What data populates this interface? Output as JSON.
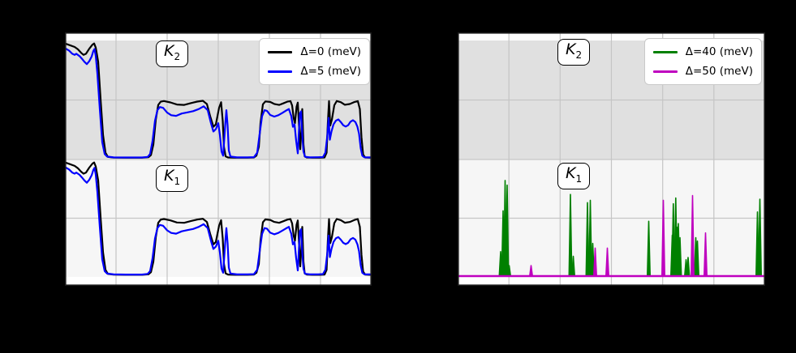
{
  "figure": {
    "background": "#000000",
    "axes_background": "#ffffff",
    "grid_color": "#c5c5c5",
    "frame_color": "#1b1b1b"
  },
  "panels": [
    {
      "id": "left",
      "klabels": [
        {
          "base": "K",
          "sub": "2"
        },
        {
          "base": "K",
          "sub": "1"
        }
      ]
    },
    {
      "id": "right",
      "klabels": [
        {
          "base": "K",
          "sub": "2"
        },
        {
          "base": "K",
          "sub": "1"
        }
      ]
    }
  ],
  "chart_data": [
    {
      "panel": "left",
      "type": "line",
      "legend_position": "upper right",
      "grid": true,
      "x_tick_labels_visible": false,
      "y_tick_labels_visible": false,
      "bands": [
        {
          "label": "K2",
          "fill": "#e0e0e0"
        },
        {
          "label": "K1",
          "fill": "#f6f6f6"
        }
      ],
      "x_units": "px across panel (0-378)",
      "y_units": "fraction of band height above band baseline",
      "note_layout": "same curves drawn in upper K2 band and lower K1 band",
      "series": [
        {
          "name": "Δ=0 (meV)",
          "color": "#000000",
          "width": 2.2,
          "points": [
            [
              0,
              0.975
            ],
            [
              6,
              0.96
            ],
            [
              12,
              0.945
            ],
            [
              16,
              0.925
            ],
            [
              20,
              0.895
            ],
            [
              23,
              0.878
            ],
            [
              26,
              0.888
            ],
            [
              30,
              0.93
            ],
            [
              34,
              0.965
            ],
            [
              36,
              0.975
            ],
            [
              38,
              0.94
            ],
            [
              41,
              0.82
            ],
            [
              44,
              0.5
            ],
            [
              47,
              0.2
            ],
            [
              50,
              0.05
            ],
            [
              53,
              0.015
            ],
            [
              60,
              0.009
            ],
            [
              75,
              0.008
            ],
            [
              95,
              0.008
            ],
            [
              103,
              0.012
            ],
            [
              106,
              0.03
            ],
            [
              109,
              0.12
            ],
            [
              112,
              0.33
            ],
            [
              115,
              0.455
            ],
            [
              118,
              0.482
            ],
            [
              122,
              0.488
            ],
            [
              130,
              0.476
            ],
            [
              138,
              0.458
            ],
            [
              147,
              0.455
            ],
            [
              155,
              0.47
            ],
            [
              163,
              0.483
            ],
            [
              170,
              0.49
            ],
            [
              175,
              0.462
            ],
            [
              179,
              0.36
            ],
            [
              183,
              0.27
            ],
            [
              186,
              0.29
            ],
            [
              190,
              0.43
            ],
            [
              192.5,
              0.478
            ],
            [
              194.5,
              0.32
            ],
            [
              196,
              0.1
            ],
            [
              198,
              0.02
            ],
            [
              201,
              0.01
            ],
            [
              210,
              0.008
            ],
            [
              225,
              0.008
            ],
            [
              233,
              0.01
            ],
            [
              236,
              0.025
            ],
            [
              239,
              0.1
            ],
            [
              241,
              0.3
            ],
            [
              244,
              0.46
            ],
            [
              247,
              0.484
            ],
            [
              253,
              0.48
            ],
            [
              258,
              0.463
            ],
            [
              264,
              0.455
            ],
            [
              269,
              0.468
            ],
            [
              274,
              0.482
            ],
            [
              278,
              0.487
            ],
            [
              280,
              0.45
            ],
            [
              282,
              0.34
            ],
            [
              283.5,
              0.3
            ],
            [
              285.5,
              0.44
            ],
            [
              287,
              0.475
            ],
            [
              288.5,
              0.28
            ],
            [
              290,
              0.08
            ],
            [
              291.5,
              0.25
            ],
            [
              292.5,
              0.42
            ],
            [
              294,
              0.12
            ],
            [
              295.5,
              0.02
            ],
            [
              298,
              0.01
            ],
            [
              305,
              0.008
            ],
            [
              314,
              0.008
            ],
            [
              320,
              0.01
            ],
            [
              322.5,
              0.05
            ],
            [
              324,
              0.3
            ],
            [
              325.5,
              0.487
            ],
            [
              327,
              0.28
            ],
            [
              329,
              0.33
            ],
            [
              332,
              0.452
            ],
            [
              335,
              0.488
            ],
            [
              340,
              0.478
            ],
            [
              345,
              0.456
            ],
            [
              351,
              0.462
            ],
            [
              357,
              0.48
            ],
            [
              361,
              0.487
            ],
            [
              363.5,
              0.42
            ],
            [
              365.5,
              0.18
            ],
            [
              367.5,
              0.035
            ],
            [
              370,
              0.01
            ],
            [
              375,
              0.008
            ],
            [
              378,
              0.008
            ]
          ]
        },
        {
          "name": "Δ=5 (meV)",
          "color": "#0000ff",
          "width": 2.2,
          "points": [
            [
              0,
              0.935
            ],
            [
              5,
              0.915
            ],
            [
              9,
              0.888
            ],
            [
              12,
              0.878
            ],
            [
              14,
              0.888
            ],
            [
              18,
              0.868
            ],
            [
              21,
              0.845
            ],
            [
              24,
              0.82
            ],
            [
              27,
              0.8
            ],
            [
              30,
              0.825
            ],
            [
              33,
              0.865
            ],
            [
              35,
              0.91
            ],
            [
              36.5,
              0.928
            ],
            [
              38,
              0.87
            ],
            [
              40,
              0.72
            ],
            [
              43,
              0.42
            ],
            [
              46,
              0.14
            ],
            [
              49,
              0.04
            ],
            [
              52,
              0.018
            ],
            [
              60,
              0.011
            ],
            [
              75,
              0.01
            ],
            [
              95,
              0.01
            ],
            [
              102,
              0.015
            ],
            [
              105,
              0.04
            ],
            [
              108,
              0.15
            ],
            [
              111,
              0.32
            ],
            [
              114,
              0.41
            ],
            [
              117,
              0.437
            ],
            [
              121,
              0.43
            ],
            [
              126,
              0.39
            ],
            [
              131,
              0.368
            ],
            [
              137,
              0.362
            ],
            [
              144,
              0.382
            ],
            [
              151,
              0.392
            ],
            [
              158,
              0.402
            ],
            [
              165,
              0.42
            ],
            [
              171,
              0.443
            ],
            [
              176,
              0.41
            ],
            [
              180,
              0.3
            ],
            [
              183,
              0.23
            ],
            [
              186,
              0.25
            ],
            [
              189,
              0.3
            ],
            [
              191,
              0.2
            ],
            [
              193,
              0.06
            ],
            [
              195,
              0.025
            ],
            [
              197.5,
              0.28
            ],
            [
              199,
              0.41
            ],
            [
              200.5,
              0.28
            ],
            [
              202,
              0.07
            ],
            [
              204,
              0.018
            ],
            [
              212,
              0.011
            ],
            [
              225,
              0.011
            ],
            [
              233,
              0.013
            ],
            [
              237,
              0.05
            ],
            [
              240,
              0.21
            ],
            [
              243,
              0.36
            ],
            [
              246,
              0.41
            ],
            [
              249,
              0.405
            ],
            [
              253,
              0.37
            ],
            [
              258,
              0.356
            ],
            [
              263,
              0.368
            ],
            [
              268,
              0.388
            ],
            [
              272,
              0.405
            ],
            [
              276,
              0.42
            ],
            [
              279,
              0.36
            ],
            [
              281,
              0.27
            ],
            [
              283,
              0.29
            ],
            [
              285,
              0.15
            ],
            [
              287,
              0.045
            ],
            [
              289.5,
              0.38
            ],
            [
              291,
              0.4
            ],
            [
              292.5,
              0.2
            ],
            [
              294,
              0.06
            ],
            [
              296,
              0.016
            ],
            [
              302,
              0.011
            ],
            [
              312,
              0.012
            ],
            [
              318,
              0.014
            ],
            [
              321,
              0.05
            ],
            [
              323.5,
              0.2
            ],
            [
              325,
              0.345
            ],
            [
              326.5,
              0.16
            ],
            [
              328.5,
              0.23
            ],
            [
              331,
              0.29
            ],
            [
              334,
              0.322
            ],
            [
              337,
              0.332
            ],
            [
              340,
              0.31
            ],
            [
              343,
              0.283
            ],
            [
              346,
              0.272
            ],
            [
              349,
              0.283
            ],
            [
              352,
              0.313
            ],
            [
              355,
              0.325
            ],
            [
              358,
              0.31
            ],
            [
              360.5,
              0.27
            ],
            [
              362.5,
              0.21
            ],
            [
              364.5,
              0.09
            ],
            [
              366.5,
              0.025
            ],
            [
              369,
              0.012
            ],
            [
              374,
              0.011
            ],
            [
              378,
              0.011
            ]
          ]
        }
      ]
    },
    {
      "panel": "right",
      "type": "spikes",
      "legend_position": "upper right",
      "grid": true,
      "x_tick_labels_visible": false,
      "y_tick_labels_visible": false,
      "bands": [
        {
          "label": "K2",
          "fill": "#e0e0e0"
        },
        {
          "label": "K1",
          "fill": "#f6f6f6"
        }
      ],
      "x_units": "px across panel (0-379)",
      "y_units": "fraction of band height above baseline",
      "note_layout": "flat baseline with sharp spikes in lower K1 band only; upper K2 band empty",
      "series": [
        {
          "name": "Δ=40 (meV)",
          "color": "#008000",
          "width": 2,
          "spikes": [
            [
              53,
              0.21
            ],
            [
              56,
              0.56
            ],
            [
              58.5,
              0.82
            ],
            [
              61,
              0.78
            ],
            [
              63.5,
              0.09
            ],
            [
              139,
              0.7
            ],
            [
              142.5,
              0.17
            ],
            [
              160,
              0.63
            ],
            [
              163.5,
              0.65
            ],
            [
              166.5,
              0.28
            ],
            [
              235.5,
              0.47
            ],
            [
              264.5,
              0.35
            ],
            [
              265.8,
              0.62
            ],
            [
              267.2,
              0.3
            ],
            [
              268.8,
              0.67
            ],
            [
              270.3,
              0.42
            ],
            [
              272,
              0.45
            ],
            [
              274,
              0.33
            ],
            [
              281.5,
              0.14
            ],
            [
              284,
              0.16
            ],
            [
              293.5,
              0.33
            ],
            [
              295.5,
              0.3
            ],
            [
              369.5,
              0.55
            ],
            [
              372.5,
              0.66
            ]
          ]
        },
        {
          "name": "Δ=50 (meV)",
          "color": "#bf00bf",
          "width": 2.5,
          "spikes": [
            [
              90.5,
              0.09
            ],
            [
              169.5,
              0.24
            ],
            [
              184.5,
              0.24
            ],
            [
              253.5,
              0.65
            ],
            [
              289.5,
              0.69
            ],
            [
              305.5,
              0.37
            ]
          ]
        }
      ]
    }
  ]
}
